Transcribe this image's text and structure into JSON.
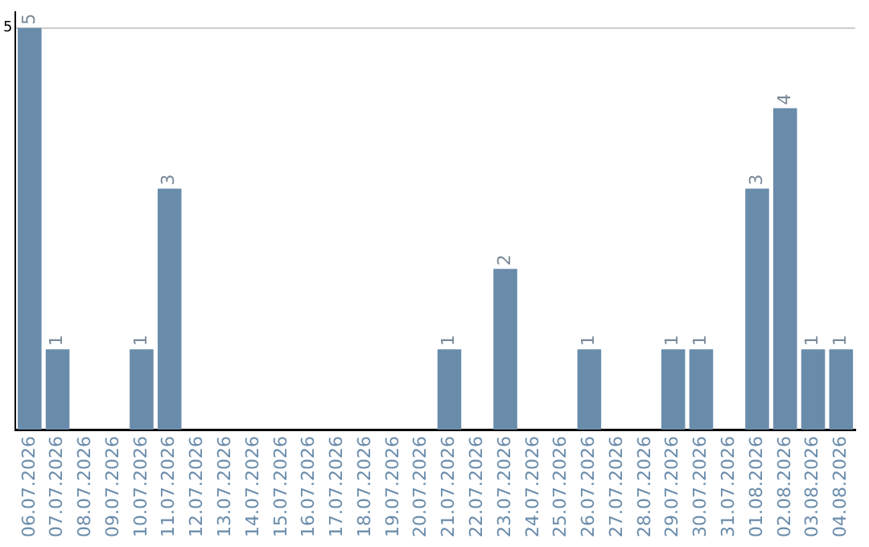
{
  "chart_data": {
    "type": "bar",
    "categories": [
      "06.07.2026",
      "07.07.2026",
      "08.07.2026",
      "09.07.2026",
      "10.07.2026",
      "11.07.2026",
      "12.07.2026",
      "13.07.2026",
      "14.07.2026",
      "15.07.2026",
      "16.07.2026",
      "17.07.2026",
      "18.07.2026",
      "19.07.2026",
      "20.07.2026",
      "21.07.2026",
      "22.07.2026",
      "23.07.2026",
      "24.07.2026",
      "25.07.2026",
      "26.07.2026",
      "27.07.2026",
      "28.07.2026",
      "29.07.2026",
      "30.07.2026",
      "31.07.2026",
      "01.08.2026",
      "02.08.2026",
      "03.08.2026",
      "04.08.2026"
    ],
    "values": [
      5,
      1,
      0,
      0,
      1,
      3,
      0,
      0,
      0,
      0,
      0,
      0,
      0,
      0,
      0,
      1,
      0,
      2,
      0,
      0,
      1,
      0,
      0,
      1,
      1,
      0,
      3,
      4,
      1,
      1
    ],
    "value_labels": [
      "5",
      "1",
      null,
      null,
      "1",
      "3",
      null,
      null,
      null,
      null,
      null,
      null,
      null,
      null,
      null,
      "1",
      null,
      "2",
      null,
      null,
      "1",
      null,
      null,
      "1",
      "1",
      null,
      "3",
      "4",
      "1",
      "1"
    ],
    "color": "#6a8cab",
    "ylim": [
      0,
      5.2
    ],
    "yticks": [
      5
    ],
    "grid": "y",
    "legend": false
  }
}
